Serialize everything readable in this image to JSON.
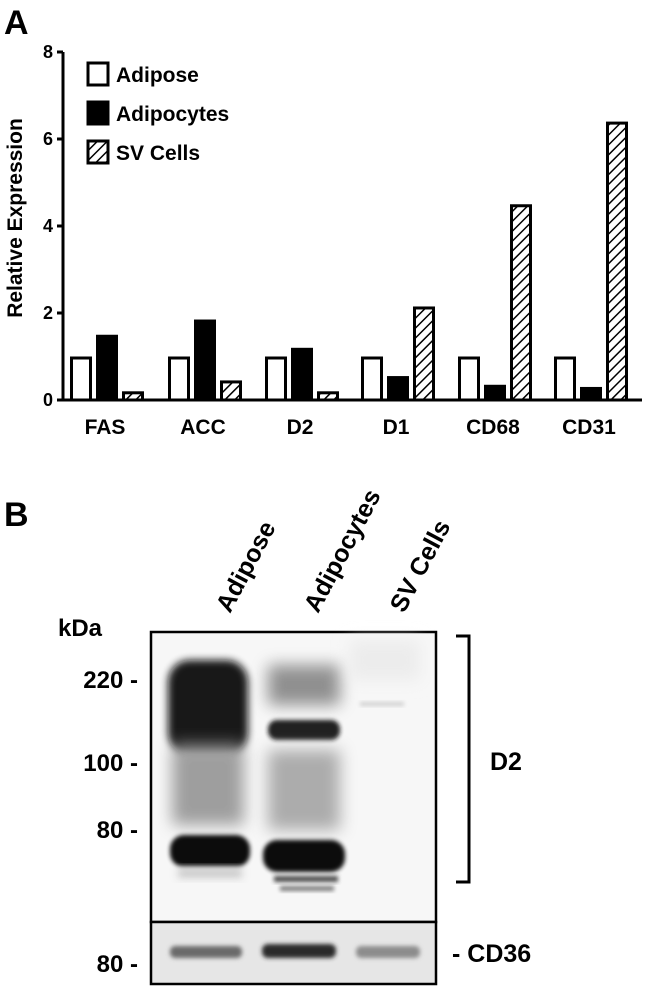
{
  "panels": {
    "a_label": "A",
    "b_label": "B"
  },
  "chart_data": {
    "type": "bar",
    "title": "",
    "xlabel": "",
    "ylabel": "Relative Expression",
    "ylim": [
      0,
      8
    ],
    "yticks": [
      "0",
      "2",
      "4",
      "6",
      "8"
    ],
    "grid": false,
    "legend_position": "top-left",
    "categories": [
      "FAS",
      "ACC",
      "D2",
      "D1",
      "CD68",
      "CD31"
    ],
    "series": [
      {
        "name": "Adipose",
        "fill": "white",
        "values": [
          1.0,
          1.0,
          1.0,
          1.0,
          1.0,
          1.0
        ]
      },
      {
        "name": "Adipocytes",
        "fill": "black",
        "values": [
          1.5,
          1.85,
          1.2,
          0.55,
          0.35,
          0.3
        ]
      },
      {
        "name": "SV Cells",
        "fill": "hatched",
        "values": [
          0.2,
          0.45,
          0.2,
          2.15,
          4.5,
          6.4
        ]
      }
    ]
  },
  "blot": {
    "lanes": [
      "Adipose",
      "Adipocytes",
      "SV Cells"
    ],
    "unit_label": "kDa",
    "markers_top": [
      "220 -",
      "100 -",
      "80 -"
    ],
    "marker_bottom": "80 -",
    "band_top": "D2",
    "band_bottom": "- CD36"
  },
  "colors": {
    "bar_outline": "#000000",
    "adipocytes_fill": "#000000",
    "background": "#ffffff"
  }
}
